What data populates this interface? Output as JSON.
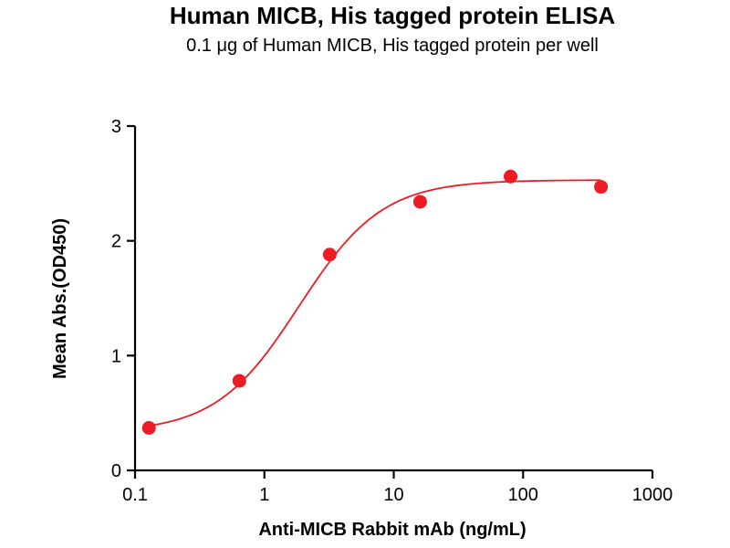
{
  "chart_data": {
    "type": "scatter",
    "title": "Human MICB, His tagged protein ELISA",
    "subtitle": "0.1 μg of Human MICB, His tagged protein per well",
    "xlabel": "Anti-MICB Rabbit mAb (ng/mL)",
    "ylabel": "Mean Abs.(OD450)",
    "x_scale": "log10",
    "xlim": [
      0.1,
      1000
    ],
    "ylim": [
      0,
      3
    ],
    "x_ticks": [
      "0.1",
      "1",
      "10",
      "100",
      "1000"
    ],
    "y_ticks": [
      "0",
      "1",
      "2",
      "3"
    ],
    "points": [
      {
        "x": 0.128,
        "y": 0.37
      },
      {
        "x": 0.64,
        "y": 0.78
      },
      {
        "x": 3.2,
        "y": 1.88
      },
      {
        "x": 16,
        "y": 2.34
      },
      {
        "x": 80,
        "y": 2.56
      },
      {
        "x": 400,
        "y": 2.47
      }
    ],
    "fit": {
      "model": "4PL",
      "bottom": 0.33,
      "top": 2.53,
      "ec50": 1.85,
      "hill": 1.35,
      "x_start": 0.128,
      "x_end": 400
    },
    "marker_color": "#ed1c24",
    "curve_color": "#ed1c24",
    "axis_color": "#000000",
    "legend": "none",
    "grid": false
  }
}
